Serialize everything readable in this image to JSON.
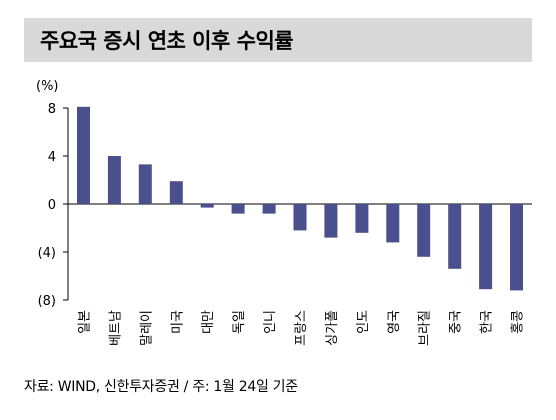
{
  "title": "주요국 증시 연초 이후 수익률",
  "source": "자료: WIND, 신한투자증권 / 주: 1월 24일 기준",
  "colors": {
    "bar": "#4a4f8e",
    "axis": "#000000",
    "title_bg": "#d9d9d9"
  },
  "chart_data": {
    "type": "bar",
    "unit_label": "(%)",
    "categories": [
      "일본",
      "베트남",
      "말레이",
      "미국",
      "대만",
      "독일",
      "인니",
      "프랑스",
      "싱가폴",
      "인도",
      "영국",
      "브라질",
      "중국",
      "한국",
      "홍콩"
    ],
    "values": [
      8.1,
      4.0,
      3.3,
      1.9,
      -0.3,
      -0.8,
      -0.8,
      -2.2,
      -2.8,
      -2.4,
      -3.2,
      -4.4,
      -5.4,
      -7.1,
      -7.2
    ],
    "ylim": [
      -8,
      8
    ],
    "yticks": [
      8,
      4,
      0,
      -4,
      -8
    ],
    "ytick_labels": [
      "8",
      "4",
      "0",
      "(4)",
      "(8)"
    ],
    "grid": false,
    "legend": "none"
  }
}
